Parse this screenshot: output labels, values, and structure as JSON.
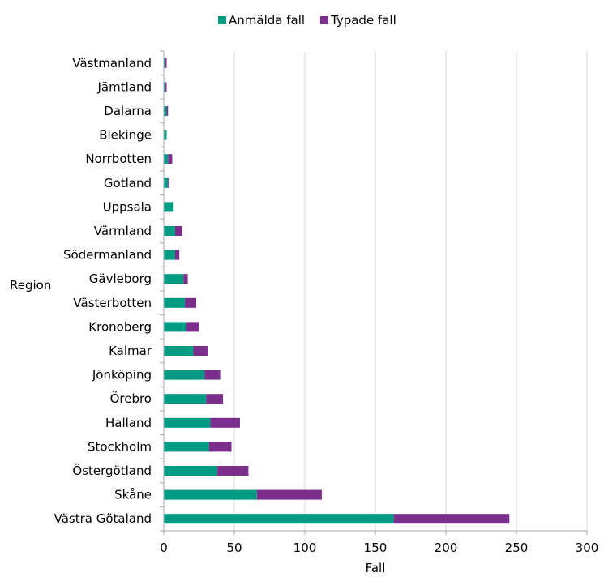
{
  "chart_data": {
    "type": "bar",
    "orientation": "horizontal",
    "stacked": true,
    "title": "",
    "xlabel": "Fall",
    "ylabel": "Region",
    "xlim": [
      0,
      300
    ],
    "xticks": [
      0,
      50,
      100,
      150,
      200,
      250,
      300
    ],
    "grid": true,
    "legend_position": "top-center",
    "categories": [
      "Västmanland",
      "Jämtland",
      "Dalarna",
      "Blekinge",
      "Norrbotten",
      "Gotland",
      "Uppsala",
      "Värmland",
      "Södermanland",
      "Gävleborg",
      "Västerbotten",
      "Kronoberg",
      "Kalmar",
      "Jönköping",
      "Örebro",
      "Halland",
      "Stockholm",
      "Östergötland",
      "Skåne",
      "Västra Götaland"
    ],
    "series": [
      {
        "name": "Anmälda fall",
        "color": "#009B83",
        "values": [
          1,
          1,
          2,
          2,
          3,
          3,
          7,
          8,
          8,
          14,
          15,
          16,
          21,
          29,
          30,
          33,
          32,
          38,
          66,
          163
        ]
      },
      {
        "name": "Typade fall",
        "color": "#7B2E8C",
        "values": [
          1,
          1,
          1,
          0,
          3,
          1,
          0,
          5,
          3,
          3,
          8,
          9,
          10,
          11,
          12,
          21,
          16,
          22,
          46,
          82
        ]
      }
    ]
  }
}
